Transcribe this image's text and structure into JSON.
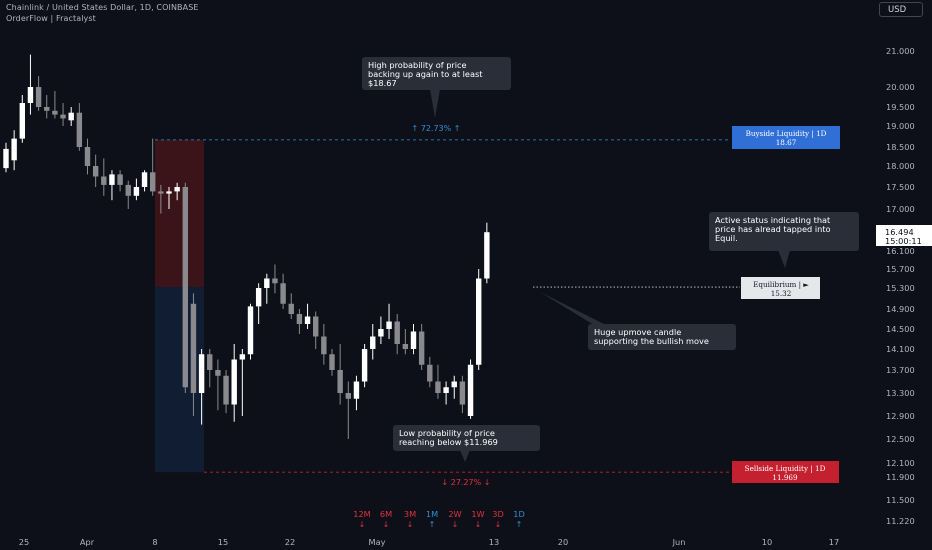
{
  "header": {
    "symbol_line": "Chainlink / United States Dollar, 1D, COINBASE",
    "indicator_line": "OrderFlow | Fractalyst",
    "currency_button": "USD"
  },
  "price_axis": {
    "ticks": [
      "21.000",
      "20.000",
      "19.500",
      "19.000",
      "18.500",
      "18.000",
      "17.500",
      "17.000",
      "16.100",
      "15.700",
      "15.300",
      "14.900",
      "14.500",
      "14.100",
      "13.700",
      "13.300",
      "12.900",
      "12.500",
      "12.100",
      "11.900",
      "11.500",
      "11.220"
    ],
    "current_price": "16.494",
    "countdown": "15:00:11"
  },
  "time_axis": {
    "labels": [
      "25",
      "Apr",
      "8",
      "15",
      "22",
      "May",
      "13",
      "20",
      "Jun",
      "10",
      "17"
    ]
  },
  "timeframes": [
    {
      "label": "12M",
      "dir": "down"
    },
    {
      "label": "6M",
      "dir": "down"
    },
    {
      "label": "3M",
      "dir": "down"
    },
    {
      "label": "1M",
      "dir": "up"
    },
    {
      "label": "2W",
      "dir": "down"
    },
    {
      "label": "1W",
      "dir": "down"
    },
    {
      "label": "3D",
      "dir": "down"
    },
    {
      "label": "1D",
      "dir": "up"
    }
  ],
  "levels": {
    "buyside": {
      "label": "Buyside  Liquidity  |  1D",
      "value": "18.67",
      "probability": "72.73%",
      "color": "#2f6fd6"
    },
    "sellside": {
      "label": "Sellside  Liquidity  |  1D",
      "value": "11.969",
      "probability": "27.27%",
      "color": "#c4202f"
    },
    "equilibrium": {
      "label": "Equilibrium  |  ►",
      "value": "15.32"
    }
  },
  "annotations": {
    "high_prob": [
      "High probability of price",
      "backing up again to at least",
      "$18.67"
    ],
    "low_prob": [
      "Low probability of price",
      "reaching below $11.969"
    ],
    "active_status": [
      "Active status indicating that",
      "price has alread tapped into",
      "Equil."
    ],
    "huge_upmove": [
      "Huge upmove candle",
      "supporting the bullish move"
    ]
  },
  "colors": {
    "up": "#ffffff",
    "down": "#8a8a8e",
    "background": "#0d1018",
    "premium_zone": "#3a1419",
    "discount_zone": "#101d33"
  },
  "chart_data": {
    "type": "candlestick",
    "title": "Chainlink / United States Dollar, 1D, COINBASE",
    "ylim": [
      11.1,
      21.5
    ],
    "candles": [
      {
        "o": 17.95,
        "h": 18.6,
        "l": 17.85,
        "c": 18.45
      },
      {
        "o": 18.15,
        "h": 18.9,
        "l": 17.9,
        "c": 18.7
      },
      {
        "o": 18.7,
        "h": 19.8,
        "l": 18.6,
        "c": 19.6
      },
      {
        "o": 19.6,
        "h": 20.9,
        "l": 19.3,
        "c": 20.0
      },
      {
        "o": 20.0,
        "h": 20.3,
        "l": 19.4,
        "c": 19.5
      },
      {
        "o": 19.5,
        "h": 19.8,
        "l": 19.2,
        "c": 19.4
      },
      {
        "o": 19.4,
        "h": 19.9,
        "l": 19.2,
        "c": 19.3
      },
      {
        "o": 19.3,
        "h": 19.6,
        "l": 19.0,
        "c": 19.2
      },
      {
        "o": 19.15,
        "h": 19.5,
        "l": 19.0,
        "c": 19.35
      },
      {
        "o": 19.35,
        "h": 19.6,
        "l": 18.4,
        "c": 18.5
      },
      {
        "o": 18.5,
        "h": 18.7,
        "l": 17.8,
        "c": 18.0
      },
      {
        "o": 18.0,
        "h": 18.3,
        "l": 17.5,
        "c": 17.75
      },
      {
        "o": 17.75,
        "h": 18.2,
        "l": 17.3,
        "c": 17.55
      },
      {
        "o": 17.55,
        "h": 17.9,
        "l": 17.2,
        "c": 17.8
      },
      {
        "o": 17.8,
        "h": 17.9,
        "l": 17.4,
        "c": 17.55
      },
      {
        "o": 17.55,
        "h": 17.65,
        "l": 17.0,
        "c": 17.3
      },
      {
        "o": 17.3,
        "h": 17.7,
        "l": 17.2,
        "c": 17.5
      },
      {
        "o": 17.5,
        "h": 17.9,
        "l": 17.4,
        "c": 17.85
      },
      {
        "o": 17.85,
        "h": 18.7,
        "l": 17.3,
        "c": 17.4
      },
      {
        "o": 17.4,
        "h": 17.55,
        "l": 16.9,
        "c": 17.35
      },
      {
        "o": 17.35,
        "h": 17.5,
        "l": 17.0,
        "c": 17.4
      },
      {
        "o": 17.4,
        "h": 17.6,
        "l": 17.2,
        "c": 17.5
      },
      {
        "o": 17.5,
        "h": 17.6,
        "l": 13.3,
        "c": 13.4
      },
      {
        "o": 15.0,
        "h": 15.2,
        "l": 12.9,
        "c": 13.3
      },
      {
        "o": 13.3,
        "h": 14.1,
        "l": 12.75,
        "c": 14.0
      },
      {
        "o": 14.0,
        "h": 14.1,
        "l": 13.4,
        "c": 13.7
      },
      {
        "o": 13.7,
        "h": 13.9,
        "l": 13.0,
        "c": 13.6
      },
      {
        "o": 13.6,
        "h": 13.7,
        "l": 12.95,
        "c": 13.1
      },
      {
        "o": 13.1,
        "h": 14.2,
        "l": 12.8,
        "c": 13.9
      },
      {
        "o": 13.9,
        "h": 14.1,
        "l": 12.9,
        "c": 14.0
      },
      {
        "o": 14.0,
        "h": 15.0,
        "l": 13.9,
        "c": 14.95
      },
      {
        "o": 14.95,
        "h": 15.4,
        "l": 14.6,
        "c": 15.3
      },
      {
        "o": 15.3,
        "h": 15.6,
        "l": 15.0,
        "c": 15.5
      },
      {
        "o": 15.5,
        "h": 15.8,
        "l": 15.2,
        "c": 15.4
      },
      {
        "o": 15.4,
        "h": 15.6,
        "l": 14.9,
        "c": 15.0
      },
      {
        "o": 15.0,
        "h": 15.2,
        "l": 14.7,
        "c": 14.8
      },
      {
        "o": 14.8,
        "h": 14.9,
        "l": 14.4,
        "c": 14.6
      },
      {
        "o": 14.6,
        "h": 15.0,
        "l": 14.5,
        "c": 14.75
      },
      {
        "o": 14.75,
        "h": 14.85,
        "l": 14.1,
        "c": 14.35
      },
      {
        "o": 14.35,
        "h": 14.6,
        "l": 13.8,
        "c": 14.0
      },
      {
        "o": 14.0,
        "h": 14.1,
        "l": 13.6,
        "c": 13.7
      },
      {
        "o": 13.7,
        "h": 14.2,
        "l": 13.1,
        "c": 13.3
      },
      {
        "o": 13.3,
        "h": 13.5,
        "l": 12.5,
        "c": 13.2
      },
      {
        "o": 13.2,
        "h": 13.6,
        "l": 13.0,
        "c": 13.5
      },
      {
        "o": 13.5,
        "h": 14.2,
        "l": 13.4,
        "c": 14.1
      },
      {
        "o": 14.1,
        "h": 14.6,
        "l": 13.9,
        "c": 14.35
      },
      {
        "o": 14.35,
        "h": 14.75,
        "l": 14.2,
        "c": 14.5
      },
      {
        "o": 14.5,
        "h": 15.0,
        "l": 14.3,
        "c": 14.65
      },
      {
        "o": 14.65,
        "h": 14.8,
        "l": 14.0,
        "c": 14.2
      },
      {
        "o": 14.2,
        "h": 14.5,
        "l": 14.0,
        "c": 14.1
      },
      {
        "o": 14.1,
        "h": 14.6,
        "l": 14.0,
        "c": 14.45
      },
      {
        "o": 14.45,
        "h": 14.6,
        "l": 13.7,
        "c": 13.8
      },
      {
        "o": 13.8,
        "h": 13.95,
        "l": 13.4,
        "c": 13.5
      },
      {
        "o": 13.5,
        "h": 13.8,
        "l": 13.2,
        "c": 13.3
      },
      {
        "o": 13.3,
        "h": 13.5,
        "l": 13.1,
        "c": 13.4
      },
      {
        "o": 13.4,
        "h": 13.6,
        "l": 13.2,
        "c": 13.5
      },
      {
        "o": 13.5,
        "h": 13.6,
        "l": 12.95,
        "c": 13.1
      },
      {
        "o": 12.9,
        "h": 13.9,
        "l": 12.85,
        "c": 13.8
      },
      {
        "o": 13.8,
        "h": 15.7,
        "l": 13.7,
        "c": 15.5
      },
      {
        "o": 15.5,
        "h": 16.7,
        "l": 15.4,
        "c": 16.49
      }
    ]
  }
}
